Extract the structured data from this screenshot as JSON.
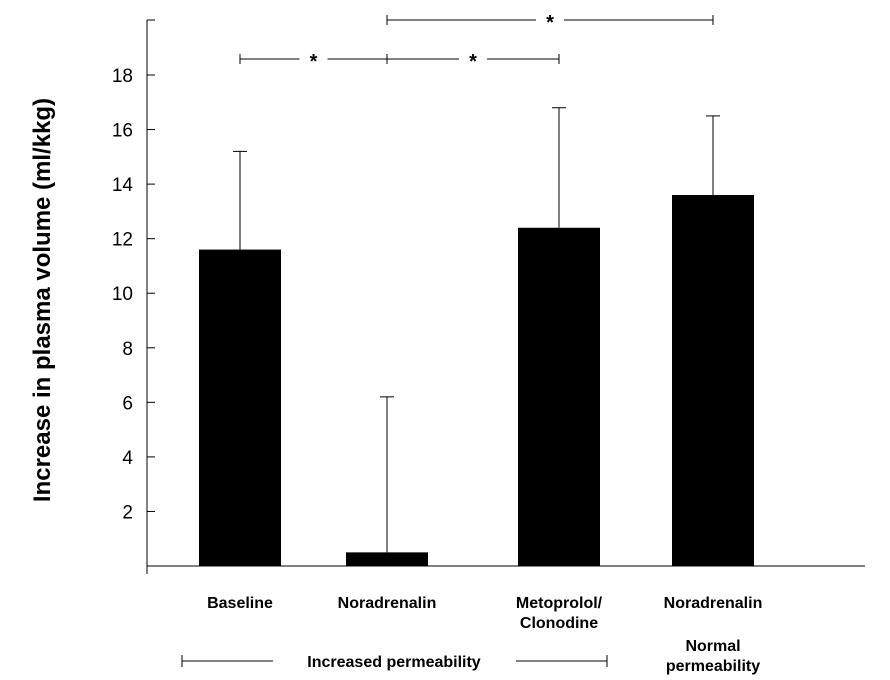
{
  "chart_data": {
    "type": "bar",
    "ylabel": "Increase in plasma volume (ml/kkg)",
    "ylim": [
      0,
      20
    ],
    "yticks": [
      2,
      4,
      6,
      8,
      10,
      12,
      14,
      16,
      18
    ],
    "categories": [
      [
        "Baseline"
      ],
      [
        "Noradrenalin"
      ],
      [
        "Metoprolol/",
        "Clonodine"
      ],
      [
        "Noradrenalin"
      ]
    ],
    "values": [
      11.6,
      0.5,
      12.4,
      13.6
    ],
    "errors": [
      3.6,
      5.7,
      4.4,
      2.9
    ],
    "bar_color": "#000000",
    "significance": [
      {
        "from": 0,
        "to": 1,
        "label": "*",
        "level": 1
      },
      {
        "from": 1,
        "to": 2,
        "label": "*",
        "level": 1
      },
      {
        "from": 1,
        "to": 3,
        "label": "*",
        "level": 2
      }
    ],
    "groups": [
      {
        "label": "Increased permeability",
        "from": 0,
        "to": 2
      },
      {
        "label": [
          "Normal",
          "permeability"
        ],
        "from": 3,
        "to": 3
      }
    ]
  }
}
